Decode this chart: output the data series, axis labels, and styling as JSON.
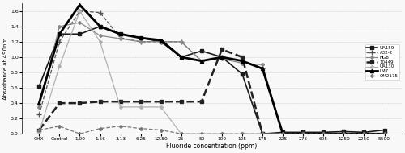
{
  "x_labels": [
    "CHX",
    "Control",
    "1.00",
    "1.56",
    "3.13",
    "6.25",
    "12.50",
    "25",
    "50",
    "100",
    "125",
    "175",
    "225",
    "275",
    "625",
    "1250",
    "2250",
    "5500"
  ],
  "xlabel": "Fluoride concentration (ppm)",
  "ylabel": "Absorbance at 490nm",
  "ylim": [
    0,
    1.7
  ],
  "yticks": [
    0.0,
    0.2,
    0.4,
    0.6,
    0.8,
    1.0,
    1.2,
    1.4,
    1.6
  ],
  "series": [
    {
      "name": "UA159",
      "color": "#1a1a1a",
      "linestyle": "-",
      "marker": "s",
      "markersize": 2.5,
      "linewidth": 1.2,
      "values": [
        0.62,
        1.3,
        1.3,
        1.4,
        1.3,
        1.25,
        1.2,
        1.0,
        1.08,
        1.0,
        0.78,
        0.0,
        0.02,
        0.02,
        0.02,
        0.03,
        0.02,
        0.05
      ]
    },
    {
      "name": "A32-2",
      "color": "#555555",
      "linestyle": "--",
      "marker": "+",
      "markersize": 4,
      "linewidth": 0.9,
      "values": [
        0.25,
        1.2,
        1.6,
        1.58,
        1.25,
        1.2,
        1.2,
        1.2,
        0.95,
        1.0,
        0.95,
        0.85,
        0.0,
        0.0,
        0.0,
        0.0,
        0.0,
        0.0
      ]
    },
    {
      "name": "NG8",
      "color": "#888888",
      "linestyle": "-",
      "marker": "D",
      "markersize": 2.0,
      "linewidth": 0.9,
      "values": [
        0.35,
        1.4,
        1.45,
        1.28,
        1.24,
        1.2,
        1.2,
        1.2,
        0.95,
        0.98,
        0.92,
        0.9,
        0.0,
        0.0,
        0.0,
        0.0,
        0.0,
        0.0
      ]
    },
    {
      "name": "10449",
      "color": "#222222",
      "linestyle": "--",
      "marker": "s",
      "markersize": 3,
      "linewidth": 1.8,
      "values": [
        0.05,
        0.4,
        0.4,
        0.42,
        0.42,
        0.42,
        0.42,
        0.42,
        0.42,
        1.1,
        1.0,
        0.0,
        0.0,
        0.0,
        0.0,
        0.0,
        0.0,
        0.0
      ]
    },
    {
      "name": "UA130",
      "color": "#b0b0b0",
      "linestyle": "-",
      "marker": "D",
      "markersize": 2.0,
      "linewidth": 0.9,
      "values": [
        0.02,
        0.88,
        1.6,
        1.2,
        0.35,
        0.35,
        0.35,
        0.0,
        0.0,
        0.0,
        0.0,
        0.0,
        0.0,
        0.0,
        0.0,
        0.0,
        0.0,
        0.0
      ]
    },
    {
      "name": "LM7",
      "color": "#000000",
      "linestyle": "-",
      "marker": "^",
      "markersize": 3,
      "linewidth": 2.0,
      "values": [
        0.4,
        1.3,
        1.68,
        1.4,
        1.3,
        1.25,
        1.22,
        1.0,
        0.95,
        1.0,
        0.95,
        0.85,
        0.0,
        0.0,
        0.0,
        0.0,
        0.0,
        0.0
      ]
    },
    {
      "name": "OM2175",
      "color": "#777777",
      "linestyle": "--",
      "marker": "D",
      "markersize": 2.0,
      "linewidth": 0.9,
      "values": [
        0.05,
        0.1,
        0.0,
        0.07,
        0.1,
        0.07,
        0.05,
        0.0,
        0.0,
        0.0,
        0.0,
        0.0,
        0.0,
        0.0,
        0.0,
        0.0,
        0.0,
        0.0
      ]
    }
  ]
}
